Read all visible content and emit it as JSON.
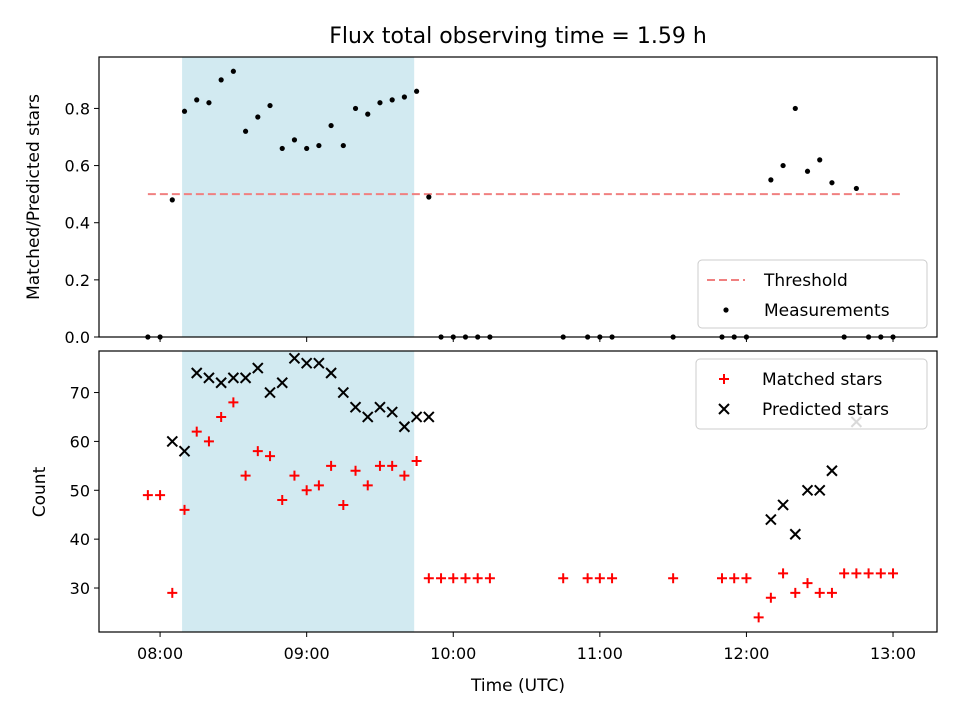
{
  "chart_data": [
    {
      "type": "scatter",
      "title": "Flux total observing time = 1.59 h",
      "xlabel": "",
      "ylabel": "Matched/Predicted stars",
      "ylim": [
        0,
        0.98
      ],
      "yticks": [
        "0.0",
        "0.2",
        "0.4",
        "0.6",
        "0.8"
      ],
      "grid": false,
      "legend_position": "lower-right",
      "shaded_interval": [
        "08:09",
        "09:44"
      ],
      "shade_color": "#add8e6",
      "threshold": {
        "name": "Threshold",
        "value": 0.5,
        "x_range": [
          "07:55",
          "13:03"
        ],
        "color": "#f08080"
      },
      "series": [
        {
          "name": "Measurements",
          "color": "#000000",
          "marker": "dot",
          "x": [
            "07:55",
            "08:00",
            "08:05",
            "08:10",
            "08:15",
            "08:20",
            "08:25",
            "08:30",
            "08:35",
            "08:40",
            "08:45",
            "08:50",
            "08:55",
            "09:00",
            "09:05",
            "09:10",
            "09:15",
            "09:20",
            "09:25",
            "09:30",
            "09:35",
            "09:40",
            "09:45",
            "09:50",
            "09:55",
            "10:00",
            "10:05",
            "10:10",
            "10:15",
            "10:45",
            "10:55",
            "11:00",
            "11:05",
            "11:30",
            "11:50",
            "11:55",
            "12:00",
            "12:10",
            "12:15",
            "12:20",
            "12:25",
            "12:30",
            "12:35",
            "12:40",
            "12:45",
            "12:50",
            "12:55",
            "13:00"
          ],
          "y": [
            0,
            0,
            0.48,
            0.79,
            0.83,
            0.82,
            0.9,
            0.93,
            0.72,
            0.77,
            0.81,
            0.66,
            0.69,
            0.66,
            0.67,
            0.74,
            0.67,
            0.8,
            0.78,
            0.82,
            0.83,
            0.84,
            0.86,
            0.49,
            0,
            0,
            0,
            0,
            0,
            0,
            0,
            0,
            0,
            0,
            0,
            0,
            0,
            0.55,
            0.6,
            0.8,
            0.58,
            0.62,
            0.54,
            0,
            0.52,
            0,
            0,
            0
          ]
        }
      ]
    },
    {
      "type": "scatter",
      "title": "",
      "xlabel": "Time (UTC)",
      "ylabel": "Count",
      "ylim": [
        21,
        78.5
      ],
      "yticks": [
        "30",
        "40",
        "50",
        "60",
        "70"
      ],
      "xticks": [
        "08:00",
        "09:00",
        "10:00",
        "11:00",
        "12:00",
        "13:00"
      ],
      "xlim": [
        "07:35",
        "13:18"
      ],
      "grid": false,
      "legend_position": "top-right",
      "shaded_interval": [
        "08:09",
        "09:44"
      ],
      "shade_color": "#add8e6",
      "series": [
        {
          "name": "Matched stars",
          "color": "#ff0000",
          "marker": "plus",
          "x": [
            "07:55",
            "08:00",
            "08:05",
            "08:10",
            "08:15",
            "08:20",
            "08:25",
            "08:30",
            "08:35",
            "08:40",
            "08:45",
            "08:50",
            "08:55",
            "09:00",
            "09:05",
            "09:10",
            "09:15",
            "09:20",
            "09:25",
            "09:30",
            "09:35",
            "09:40",
            "09:45",
            "09:50",
            "09:55",
            "10:00",
            "10:05",
            "10:10",
            "10:15",
            "10:45",
            "10:55",
            "11:00",
            "11:05",
            "11:30",
            "11:50",
            "11:55",
            "12:00",
            "12:05",
            "12:10",
            "12:15",
            "12:20",
            "12:25",
            "12:30",
            "12:35",
            "12:40",
            "12:45",
            "12:50",
            "12:55",
            "13:00"
          ],
          "y": [
            49,
            49,
            29,
            46,
            62,
            60,
            65,
            68,
            53,
            58,
            57,
            48,
            53,
            50,
            51,
            55,
            47,
            54,
            51,
            55,
            55,
            53,
            56,
            32,
            32,
            32,
            32,
            32,
            32,
            32,
            32,
            32,
            32,
            32,
            32,
            32,
            32,
            24,
            28,
            33,
            29,
            31,
            29,
            29,
            33,
            33,
            33,
            33,
            33
          ]
        },
        {
          "name": "Predicted stars",
          "color": "#000000",
          "marker": "cross",
          "x": [
            "08:05",
            "08:10",
            "08:15",
            "08:20",
            "08:25",
            "08:30",
            "08:35",
            "08:40",
            "08:45",
            "08:50",
            "08:55",
            "09:00",
            "09:05",
            "09:10",
            "09:15",
            "09:20",
            "09:25",
            "09:30",
            "09:35",
            "09:40",
            "09:45",
            "09:50",
            "12:10",
            "12:15",
            "12:20",
            "12:25",
            "12:30",
            "12:35",
            "12:45"
          ],
          "y": [
            60,
            58,
            74,
            73,
            72,
            73,
            73,
            75,
            70,
            72,
            77,
            76,
            76,
            74,
            70,
            67,
            65,
            67,
            66,
            63,
            65,
            65,
            44,
            47,
            41,
            50,
            50,
            54,
            64
          ]
        }
      ]
    }
  ]
}
